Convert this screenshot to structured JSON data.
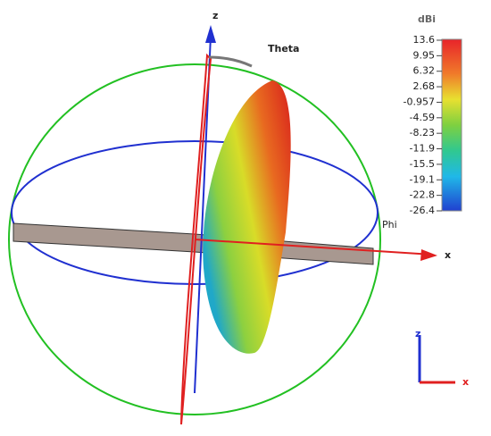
{
  "view": {
    "axis_labels": {
      "z": "z",
      "theta": "Theta",
      "phi": "Phi",
      "x": "x"
    },
    "colorbar": {
      "title": "dBi",
      "ticks": [
        "13.6",
        "9.95",
        "6.32",
        "2.68",
        "-0.957",
        "-4.59",
        "-8.23",
        "-11.9",
        "-15.5",
        "-19.1",
        "-22.8",
        "-26.4"
      ]
    },
    "triad": {
      "z": "z",
      "x": "x"
    }
  }
}
